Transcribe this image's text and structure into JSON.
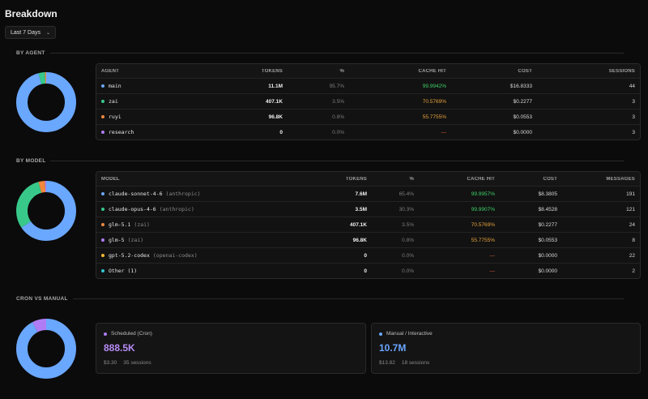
{
  "page": {
    "title": "Breakdown"
  },
  "range_select": {
    "value": "Last 7 Days"
  },
  "colors": {
    "blue": "#6aa7ff",
    "green": "#38c98a",
    "orange": "#f0883e",
    "purple": "#b07cf5",
    "yellow": "#f5b730",
    "cyan": "#33c3d0"
  },
  "by_agent": {
    "label": "BY AGENT",
    "headers": [
      "AGENT",
      "TOKENS",
      "%",
      "CACHE HIT",
      "COST",
      "SESSIONS"
    ],
    "rows": [
      {
        "name": "main",
        "color": "#6aa7ff",
        "tokens": "11.1M",
        "pct": "95.7%",
        "cache": "99.9942%",
        "cache_tone": "green",
        "cost": "$16.8333",
        "sessions": "44"
      },
      {
        "name": "zai",
        "color": "#38c98a",
        "tokens": "407.1K",
        "pct": "3.5%",
        "cache": "70.5769%",
        "cache_tone": "orange",
        "cost": "$0.2277",
        "sessions": "3"
      },
      {
        "name": "ruyi",
        "color": "#f0883e",
        "tokens": "96.8K",
        "pct": "0.8%",
        "cache": "55.7755%",
        "cache_tone": "orange",
        "cost": "$0.0553",
        "sessions": "3"
      },
      {
        "name": "research",
        "color": "#b07cf5",
        "tokens": "0",
        "pct": "0.0%",
        "cache": "—",
        "cache_tone": "dash",
        "cost": "$0.0000",
        "sessions": "3"
      }
    ],
    "donut": [
      95.7,
      3.5,
      0.8,
      0.0
    ]
  },
  "by_model": {
    "label": "BY MODEL",
    "headers": [
      "MODEL",
      "TOKENS",
      "%",
      "CACHE HIT",
      "COST",
      "MESSAGES"
    ],
    "rows": [
      {
        "name": "claude-sonnet-4-6",
        "provider": "(anthropic)",
        "color": "#6aa7ff",
        "tokens": "7.6M",
        "pct": "65.4%",
        "cache": "99.9957%",
        "cache_tone": "green",
        "cost": "$8.3805",
        "sessions": "191"
      },
      {
        "name": "claude-opus-4-6",
        "provider": "(anthropic)",
        "color": "#38c98a",
        "tokens": "3.5M",
        "pct": "30.3%",
        "cache": "99.9907%",
        "cache_tone": "green",
        "cost": "$8.4528",
        "sessions": "121"
      },
      {
        "name": "glm-5.1",
        "provider": "(zai)",
        "color": "#f0883e",
        "tokens": "407.1K",
        "pct": "3.5%",
        "cache": "70.5769%",
        "cache_tone": "orange",
        "cost": "$0.2277",
        "sessions": "24"
      },
      {
        "name": "glm-5",
        "provider": "(zai)",
        "color": "#b07cf5",
        "tokens": "96.8K",
        "pct": "0.8%",
        "cache": "55.7755%",
        "cache_tone": "orange",
        "cost": "$0.0553",
        "sessions": "8"
      },
      {
        "name": "gpt-5.2-codex",
        "provider": "(openai-codex)",
        "color": "#f5b730",
        "tokens": "0",
        "pct": "0.0%",
        "cache": "—",
        "cache_tone": "dash",
        "cost": "$0.0000",
        "sessions": "22"
      },
      {
        "name": "Other (1)",
        "provider": "",
        "color": "#33c3d0",
        "tokens": "0",
        "pct": "0.0%",
        "cache": "—",
        "cache_tone": "dash",
        "cost": "$0.0000",
        "sessions": "2"
      }
    ],
    "donut": [
      65.4,
      30.3,
      3.5,
      0.8,
      0.0,
      0.0
    ]
  },
  "cron_vs_manual": {
    "label": "CRON VS MANUAL",
    "scheduled": {
      "label": "Scheduled (Cron)",
      "value": "888.5K",
      "cost": "$3.30",
      "sessions": "35 sessions",
      "color": "#b07cf5"
    },
    "manual": {
      "label": "Manual / Interactive",
      "value": "10.7M",
      "cost": "$13.82",
      "sessions": "18 sessions",
      "color": "#6aa7ff"
    },
    "donut": [
      7.7,
      92.3
    ]
  }
}
